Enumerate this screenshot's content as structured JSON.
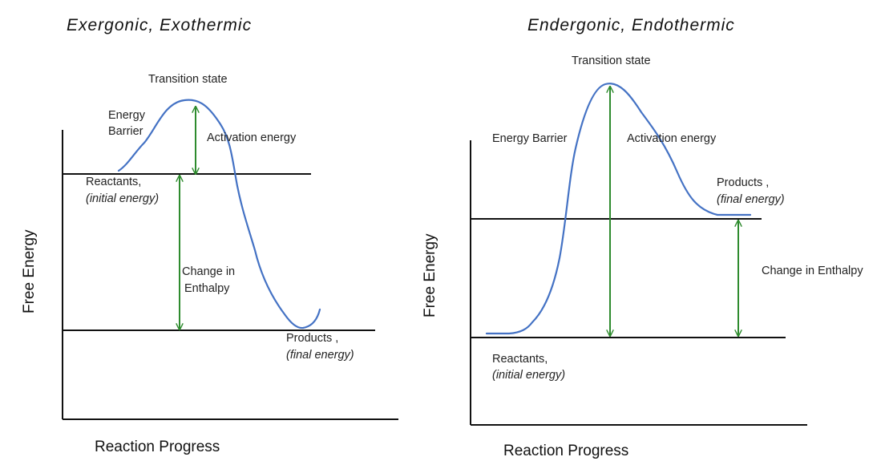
{
  "left": {
    "title": "Exergonic, Exothermic",
    "transition_state": "Transition state",
    "energy_barrier_line1": "Energy",
    "energy_barrier_line2": "Barrier",
    "activation_energy": "Activation energy",
    "reactants": "Reactants,",
    "reactants_sub": "(initial energy)",
    "change_line1": "Change in",
    "change_line2": "Enthalpy",
    "products": "Products ,",
    "products_sub": "(final energy)",
    "y_axis": "Free Energy",
    "x_axis": "Reaction Progress"
  },
  "right": {
    "title": "Endergonic, Endothermic",
    "transition_state": "Transition state",
    "energy_barrier": "Energy Barrier",
    "activation_energy": "Activation energy",
    "products": "Products ,",
    "products_sub": "(final energy)",
    "change": "Change in Enthalpy",
    "reactants": "Reactants,",
    "reactants_sub": "(initial energy)",
    "y_axis": "Free Energy",
    "x_axis": "Reaction Progress"
  },
  "colors": {
    "curve": "#4472c4",
    "arrow": "#2e8b2e",
    "line": "#111111"
  }
}
